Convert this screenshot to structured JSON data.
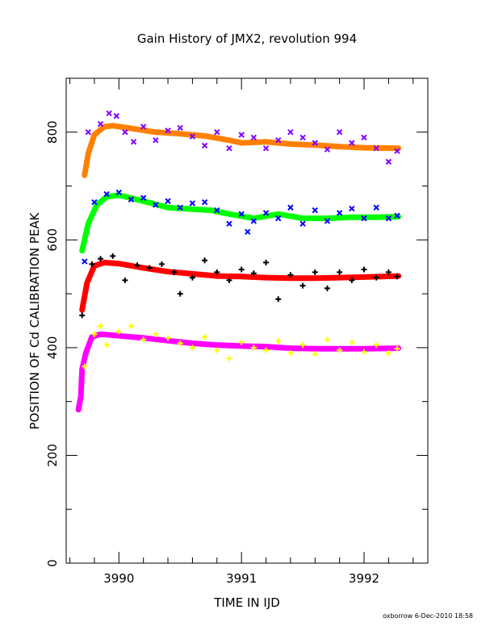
{
  "chart_data": {
    "type": "scatter",
    "title": "Gain History of JMX2, revolution 994",
    "xlabel": "TIME IN IJD",
    "ylabel": "POSITION OF Cd CALIBRATION PEAK",
    "xlim": [
      3989.57,
      3992.52
    ],
    "ylim": [
      0,
      900
    ],
    "x_ticks": [
      3990,
      3991,
      3992
    ],
    "y_ticks": [
      0,
      200,
      400,
      600,
      800
    ],
    "grid": false,
    "legend": "none",
    "series": [
      {
        "color": "#ff8000",
        "marker": "line",
        "points": [
          [
            3989.72,
            720
          ],
          [
            3989.75,
            760
          ],
          [
            3989.8,
            795
          ],
          [
            3989.88,
            810
          ],
          [
            3989.95,
            812
          ],
          [
            3990.1,
            807
          ],
          [
            3990.3,
            800
          ],
          [
            3990.5,
            797
          ],
          [
            3990.7,
            793
          ],
          [
            3990.9,
            785
          ],
          [
            3991.0,
            780
          ],
          [
            3991.2,
            782
          ],
          [
            3991.4,
            778
          ],
          [
            3991.6,
            776
          ],
          [
            3991.8,
            773
          ],
          [
            3992.0,
            771
          ],
          [
            3992.28,
            770
          ]
        ]
      },
      {
        "color": "#8000ff",
        "marker": "x",
        "points": [
          [
            3989.75,
            800
          ],
          [
            3989.85,
            815
          ],
          [
            3989.92,
            835
          ],
          [
            3989.98,
            830
          ],
          [
            3990.05,
            800
          ],
          [
            3990.12,
            782
          ],
          [
            3990.2,
            810
          ],
          [
            3990.3,
            785
          ],
          [
            3990.4,
            803
          ],
          [
            3990.5,
            808
          ],
          [
            3990.6,
            792
          ],
          [
            3990.7,
            775
          ],
          [
            3990.8,
            800
          ],
          [
            3990.9,
            770
          ],
          [
            3991.0,
            795
          ],
          [
            3991.1,
            790
          ],
          [
            3991.2,
            770
          ],
          [
            3991.3,
            785
          ],
          [
            3991.4,
            800
          ],
          [
            3991.5,
            790
          ],
          [
            3991.6,
            780
          ],
          [
            3991.7,
            768
          ],
          [
            3991.8,
            800
          ],
          [
            3991.9,
            780
          ],
          [
            3992.0,
            790
          ],
          [
            3992.1,
            770
          ],
          [
            3992.2,
            745
          ],
          [
            3992.27,
            765
          ]
        ]
      },
      {
        "color": "#00ff00",
        "marker": "line",
        "points": [
          [
            3989.7,
            580
          ],
          [
            3989.75,
            630
          ],
          [
            3989.82,
            665
          ],
          [
            3989.9,
            680
          ],
          [
            3990.0,
            683
          ],
          [
            3990.2,
            672
          ],
          [
            3990.4,
            660
          ],
          [
            3990.6,
            657
          ],
          [
            3990.75,
            655
          ],
          [
            3990.9,
            648
          ],
          [
            3991.1,
            640
          ],
          [
            3991.3,
            648
          ],
          [
            3991.5,
            640
          ],
          [
            3991.7,
            640
          ],
          [
            3991.9,
            642
          ],
          [
            3992.1,
            642
          ],
          [
            3992.28,
            643
          ]
        ]
      },
      {
        "color": "#0000ff",
        "marker": "x",
        "points": [
          [
            3989.72,
            560
          ],
          [
            3989.8,
            670
          ],
          [
            3989.9,
            685
          ],
          [
            3990.0,
            688
          ],
          [
            3990.1,
            675
          ],
          [
            3990.2,
            678
          ],
          [
            3990.3,
            665
          ],
          [
            3990.4,
            672
          ],
          [
            3990.5,
            660
          ],
          [
            3990.6,
            668
          ],
          [
            3990.7,
            670
          ],
          [
            3990.8,
            655
          ],
          [
            3990.9,
            630
          ],
          [
            3991.0,
            648
          ],
          [
            3991.05,
            615
          ],
          [
            3991.1,
            635
          ],
          [
            3991.2,
            650
          ],
          [
            3991.3,
            640
          ],
          [
            3991.4,
            660
          ],
          [
            3991.5,
            630
          ],
          [
            3991.6,
            655
          ],
          [
            3991.7,
            635
          ],
          [
            3991.8,
            650
          ],
          [
            3991.9,
            658
          ],
          [
            3992.0,
            640
          ],
          [
            3992.1,
            660
          ],
          [
            3992.2,
            640
          ],
          [
            3992.27,
            645
          ]
        ]
      },
      {
        "color": "#ff0000",
        "marker": "line",
        "points": [
          [
            3989.7,
            470
          ],
          [
            3989.74,
            520
          ],
          [
            3989.8,
            552
          ],
          [
            3989.88,
            558
          ],
          [
            3990.0,
            556
          ],
          [
            3990.2,
            548
          ],
          [
            3990.4,
            541
          ],
          [
            3990.6,
            537
          ],
          [
            3990.8,
            533
          ],
          [
            3991.0,
            532
          ],
          [
            3991.2,
            530
          ],
          [
            3991.4,
            529
          ],
          [
            3991.6,
            529
          ],
          [
            3991.8,
            530
          ],
          [
            3992.0,
            531
          ],
          [
            3992.28,
            533
          ]
        ]
      },
      {
        "color": "#000000",
        "marker": "+",
        "points": [
          [
            3989.7,
            460
          ],
          [
            3989.78,
            555
          ],
          [
            3989.85,
            565
          ],
          [
            3989.95,
            570
          ],
          [
            3990.05,
            525
          ],
          [
            3990.15,
            553
          ],
          [
            3990.25,
            548
          ],
          [
            3990.35,
            555
          ],
          [
            3990.45,
            540
          ],
          [
            3990.5,
            500
          ],
          [
            3990.6,
            530
          ],
          [
            3990.7,
            562
          ],
          [
            3990.8,
            540
          ],
          [
            3990.9,
            525
          ],
          [
            3991.0,
            545
          ],
          [
            3991.1,
            538
          ],
          [
            3991.2,
            558
          ],
          [
            3991.3,
            490
          ],
          [
            3991.4,
            535
          ],
          [
            3991.5,
            515
          ],
          [
            3991.6,
            540
          ],
          [
            3991.7,
            510
          ],
          [
            3991.8,
            540
          ],
          [
            3991.9,
            525
          ],
          [
            3992.0,
            545
          ],
          [
            3992.1,
            530
          ],
          [
            3992.2,
            540
          ],
          [
            3992.27,
            532
          ]
        ]
      },
      {
        "color": "#ff00ff",
        "marker": "line",
        "points": [
          [
            3989.67,
            285
          ],
          [
            3989.69,
            310
          ],
          [
            3989.7,
            360
          ],
          [
            3989.73,
            390
          ],
          [
            3989.78,
            420
          ],
          [
            3989.85,
            425
          ],
          [
            3990.0,
            422
          ],
          [
            3990.2,
            418
          ],
          [
            3990.4,
            413
          ],
          [
            3990.6,
            408
          ],
          [
            3990.8,
            405
          ],
          [
            3991.0,
            403
          ],
          [
            3991.2,
            402
          ],
          [
            3991.4,
            399
          ],
          [
            3991.6,
            398
          ],
          [
            3991.8,
            398
          ],
          [
            3992.0,
            398
          ],
          [
            3992.28,
            399
          ]
        ]
      },
      {
        "color": "#ffff00",
        "marker": "+",
        "points": [
          [
            3989.72,
            365
          ],
          [
            3989.8,
            425
          ],
          [
            3989.85,
            440
          ],
          [
            3989.9,
            405
          ],
          [
            3990.0,
            430
          ],
          [
            3990.1,
            440
          ],
          [
            3990.2,
            415
          ],
          [
            3990.3,
            425
          ],
          [
            3990.4,
            418
          ],
          [
            3990.5,
            408
          ],
          [
            3990.6,
            400
          ],
          [
            3990.7,
            420
          ],
          [
            3990.8,
            395
          ],
          [
            3990.9,
            380
          ],
          [
            3991.0,
            410
          ],
          [
            3991.1,
            400
          ],
          [
            3991.2,
            395
          ],
          [
            3991.3,
            412
          ],
          [
            3991.4,
            390
          ],
          [
            3991.5,
            405
          ],
          [
            3991.6,
            388
          ],
          [
            3991.7,
            415
          ],
          [
            3991.8,
            395
          ],
          [
            3991.9,
            410
          ],
          [
            3992.0,
            392
          ],
          [
            3992.1,
            405
          ],
          [
            3992.2,
            390
          ],
          [
            3992.27,
            398
          ]
        ]
      }
    ]
  },
  "footer_text": "oxborrow  6-Dec-2010 18:58"
}
